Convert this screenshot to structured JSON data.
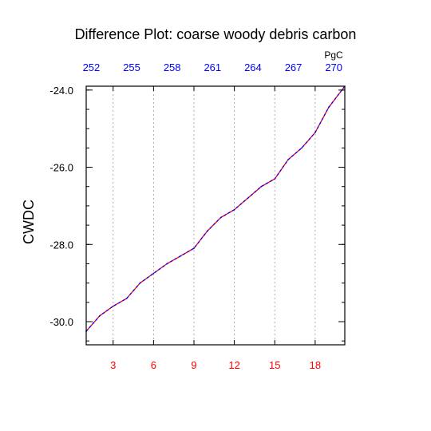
{
  "chart_data": {
    "type": "line",
    "title": "Difference Plot: coarse woody debris carbon",
    "ylabel": "CWDC",
    "top_axis_units": "PgC",
    "colors": {
      "bottom_tick_labels": "#ff0000",
      "top_tick_labels": "#0000ff",
      "line_primary": "#ff0000",
      "line_overlay": "#0000ff",
      "grid": "#999999",
      "frame": "#000000"
    },
    "grid": "vertical dashed",
    "xlim": [
      1,
      20.2
    ],
    "ylim": [
      -30.6,
      -23.9
    ],
    "bottom_ticks": [
      3,
      6,
      9,
      12,
      15,
      18
    ],
    "bottom_tick_labels": [
      "3",
      "6",
      "9",
      "12",
      "15",
      "18"
    ],
    "top_tick_labels": [
      "252",
      "255",
      "258",
      "261",
      "264",
      "267",
      "270"
    ],
    "y_ticks": [
      -24.0,
      -26.0,
      -28.0,
      -30.0
    ],
    "y_tick_labels": [
      "-24.0",
      "-26.0",
      "-28.0",
      "-30.0"
    ],
    "y_minor_step": 0.5,
    "series": [
      {
        "x": [
          1,
          2,
          3,
          4,
          5,
          6,
          7,
          8,
          9,
          10,
          11,
          12,
          13,
          14,
          15,
          16,
          17,
          18,
          19,
          20.2
        ],
        "values": [
          -30.25,
          -29.85,
          -29.6,
          -29.4,
          -29.0,
          -28.75,
          -28.5,
          -28.3,
          -28.1,
          -27.65,
          -27.3,
          -27.1,
          -26.8,
          -26.5,
          -26.3,
          -25.8,
          -25.5,
          -25.1,
          -24.45,
          -23.9
        ]
      }
    ]
  }
}
